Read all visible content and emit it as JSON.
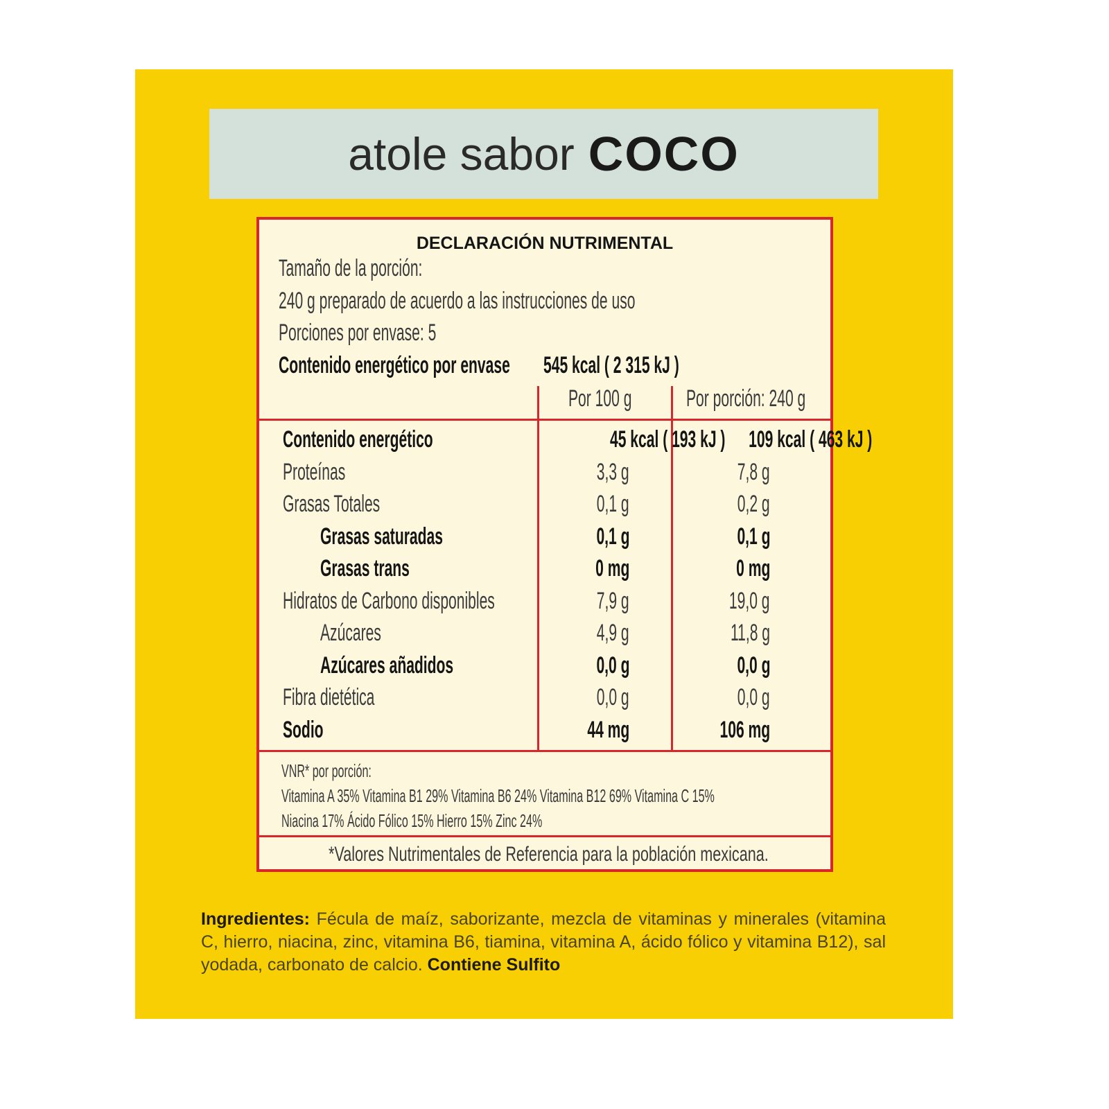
{
  "product": {
    "title_light": "atole sabor",
    "title_bold": "COCO"
  },
  "colors": {
    "background": "#f8cf02",
    "title_band": "#d3e1da",
    "label_bg": "#fcf7dd",
    "border": "#d8262b"
  },
  "nutrition": {
    "heading": "DECLARACIÓN NUTRIMENTAL",
    "serving_size_label": "Tamaño de la porción:",
    "serving_size": "240 g preparado de acuerdo a las instrucciones de uso",
    "servings": "Porciones por envase: 5",
    "energy_per_package_label": "Contenido energético por envase",
    "energy_per_package": "545 kcal ( 2 315 kJ )",
    "col_100g": "Por 100 g",
    "col_portion": "Por porción: 240 g",
    "rows": [
      {
        "name": "Contenido energético",
        "per100": "45 kcal ( 193 kJ )",
        "portion": "109 kcal ( 463 kJ )"
      },
      {
        "name": "Proteínas",
        "per100": "3,3 g",
        "portion": "7,8 g"
      },
      {
        "name": "Grasas Totales",
        "per100": "0,1 g",
        "portion": "0,2 g"
      },
      {
        "name": "Grasas saturadas",
        "per100": "0,1 g",
        "portion": "0,1 g"
      },
      {
        "name": "Grasas trans",
        "per100": "0 mg",
        "portion": "0 mg"
      },
      {
        "name": "Hidratos de Carbono disponibles",
        "per100": "7,9 g",
        "portion": "19,0 g"
      },
      {
        "name": "Azúcares",
        "per100": "4,9 g",
        "portion": "11,8 g"
      },
      {
        "name": "Azúcares añadidos",
        "per100": "0,0 g",
        "portion": "0,0 g"
      },
      {
        "name": "Fibra dietética",
        "per100": "0,0 g",
        "portion": "0,0 g"
      },
      {
        "name": "Sodio",
        "per100": "44 mg",
        "portion": "106 mg"
      }
    ],
    "vnr_label": "VNR* por porción:",
    "vnr_line1": "Vitamina A 35% Vitamina B1 29% Vitamina B6 24% Vitamina B12 69% Vitamina C 15%",
    "vnr_line2": "Niacina 17% Ácido Fólico 15% Hierro 15% Zinc 24%",
    "footnote": "*Valores Nutrimentales de Referencia para la población mexicana."
  },
  "ingredients": {
    "label": "Ingredientes:",
    "text": " Fécula de maíz, saborizante, mezcla de vitaminas y minerales (vitamina C, hierro, niacina, zinc, vitamina B6, tiamina, vitamina A, ácido fólico y vitamina B12), sal yodada, carbonato de calcio. ",
    "allergen": "Contiene Sulfito"
  }
}
